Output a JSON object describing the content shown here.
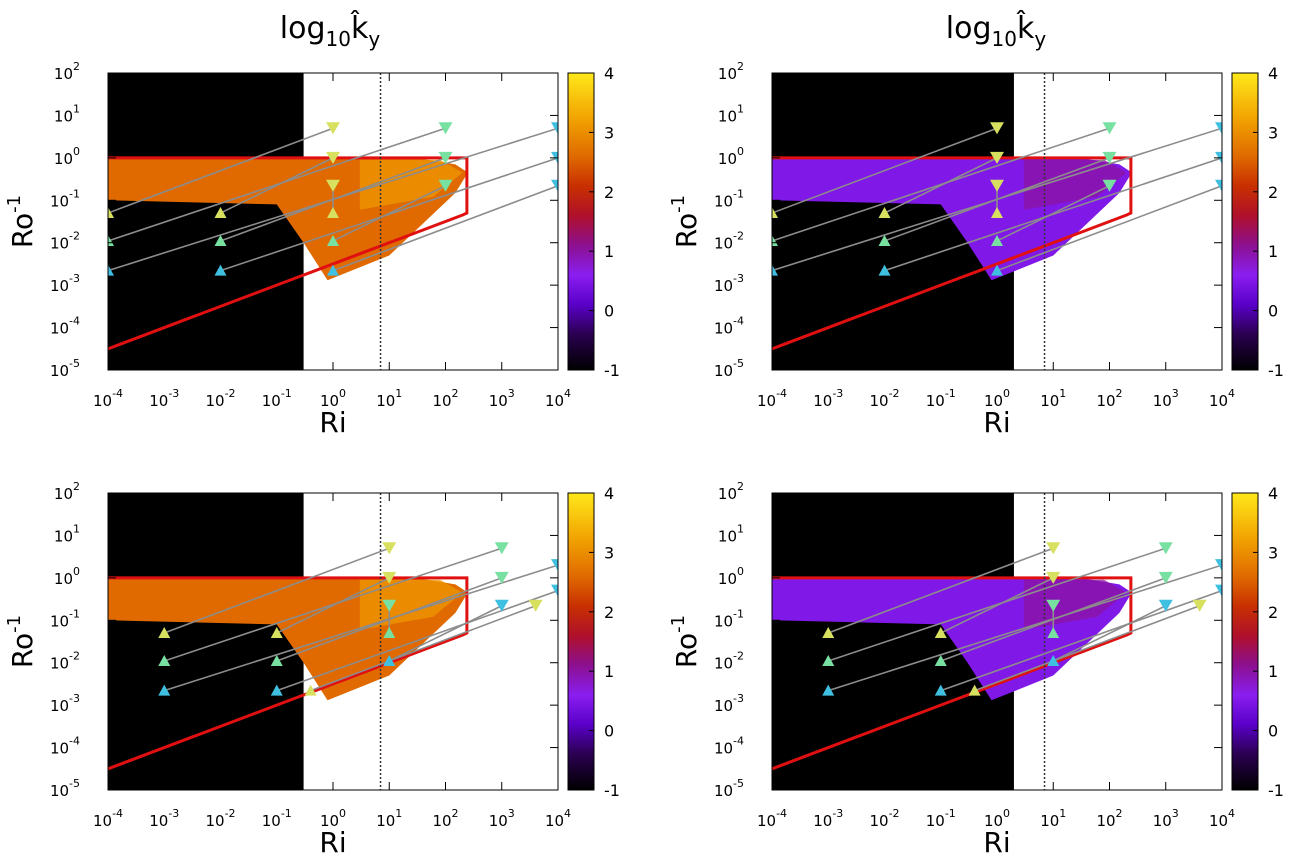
{
  "titles": [
    {
      "base": "log",
      "sub": "10",
      "var": "k̂",
      "varsub": "y"
    },
    {
      "base": "log",
      "sub": "10",
      "var": "k̂",
      "varsub": "y"
    }
  ],
  "chart_data": [
    {
      "type": "heatmap",
      "panel": "top-left",
      "xlabel": "Ri",
      "ylabel": "Ro",
      "ylabel_superscript": "-1",
      "x_scale": "log",
      "y_scale": "log",
      "xlim": [
        0.0001,
        10000
      ],
      "ylim": [
        1e-05,
        100
      ],
      "x_ticks": [
        {
          "base": "10",
          "exp": "-4"
        },
        {
          "base": "10",
          "exp": "-3"
        },
        {
          "base": "10",
          "exp": "-2"
        },
        {
          "base": "10",
          "exp": "-1"
        },
        {
          "base": "10",
          "exp": "0"
        },
        {
          "base": "10",
          "exp": "1"
        },
        {
          "base": "10",
          "exp": "2"
        },
        {
          "base": "10",
          "exp": "3"
        },
        {
          "base": "10",
          "exp": "4"
        }
      ],
      "y_ticks": [
        {
          "base": "10",
          "exp": "-5"
        },
        {
          "base": "10",
          "exp": "-4"
        },
        {
          "base": "10",
          "exp": "-3"
        },
        {
          "base": "10",
          "exp": "-2"
        },
        {
          "base": "10",
          "exp": "-1"
        },
        {
          "base": "10",
          "exp": "0"
        },
        {
          "base": "10",
          "exp": "1"
        },
        {
          "base": "10",
          "exp": "2"
        }
      ],
      "colorbar": {
        "range": [
          -1,
          4
        ],
        "ticks": [
          "4",
          "3",
          "2",
          "1",
          "0",
          "-1"
        ]
      },
      "critical_Ri": 7,
      "fill_value": 2.6,
      "stable_region_black": true,
      "arrows": [
        {
          "x0": 0.0001,
          "y0": 0.05,
          "x1": 1,
          "y1": 5
        },
        {
          "x0": 0.0001,
          "y0": 0.011,
          "x1": 100,
          "y1": 5
        },
        {
          "x0": 0.0001,
          "y0": 0.0022,
          "x1": 10000,
          "y1": 5
        },
        {
          "x0": 0.01,
          "y0": 0.05,
          "x1": 1,
          "y1": 1
        },
        {
          "x0": 0.01,
          "y0": 0.011,
          "x1": 100,
          "y1": 1
        },
        {
          "x0": 0.01,
          "y0": 0.0022,
          "x1": 10000,
          "y1": 1
        },
        {
          "x0": 1,
          "y0": 0.05,
          "x1": 1,
          "y1": 0.22
        },
        {
          "x0": 1,
          "y0": 0.011,
          "x1": 100,
          "y1": 0.22
        },
        {
          "x0": 1,
          "y0": 0.0022,
          "x1": 10000,
          "y1": 0.22
        }
      ]
    },
    {
      "type": "heatmap",
      "panel": "top-right",
      "xlabel": "Ri",
      "ylabel": "Ro",
      "ylabel_superscript": "-1",
      "x_scale": "log",
      "y_scale": "log",
      "xlim": [
        0.0001,
        10000
      ],
      "ylim": [
        1e-05,
        100
      ],
      "x_ticks": [
        {
          "base": "10",
          "exp": "-4"
        },
        {
          "base": "10",
          "exp": "-3"
        },
        {
          "base": "10",
          "exp": "-2"
        },
        {
          "base": "10",
          "exp": "-1"
        },
        {
          "base": "10",
          "exp": "0"
        },
        {
          "base": "10",
          "exp": "1"
        },
        {
          "base": "10",
          "exp": "2"
        },
        {
          "base": "10",
          "exp": "3"
        },
        {
          "base": "10",
          "exp": "4"
        }
      ],
      "y_ticks": [
        {
          "base": "10",
          "exp": "-5"
        },
        {
          "base": "10",
          "exp": "-4"
        },
        {
          "base": "10",
          "exp": "-3"
        },
        {
          "base": "10",
          "exp": "-2"
        },
        {
          "base": "10",
          "exp": "-1"
        },
        {
          "base": "10",
          "exp": "0"
        },
        {
          "base": "10",
          "exp": "1"
        },
        {
          "base": "10",
          "exp": "2"
        }
      ],
      "colorbar": {
        "range": [
          -1,
          4
        ],
        "ticks": [
          "4",
          "3",
          "2",
          "1",
          "0",
          "-1"
        ]
      },
      "critical_Ri": 7,
      "fill_value": 0.5,
      "stable_region_black": true,
      "arrows": [
        {
          "x0": 0.0001,
          "y0": 0.05,
          "x1": 1,
          "y1": 5
        },
        {
          "x0": 0.0001,
          "y0": 0.011,
          "x1": 100,
          "y1": 5
        },
        {
          "x0": 0.0001,
          "y0": 0.0022,
          "x1": 10000,
          "y1": 5
        },
        {
          "x0": 0.01,
          "y0": 0.05,
          "x1": 1,
          "y1": 1
        },
        {
          "x0": 0.01,
          "y0": 0.011,
          "x1": 100,
          "y1": 1
        },
        {
          "x0": 0.01,
          "y0": 0.0022,
          "x1": 10000,
          "y1": 1
        },
        {
          "x0": 1,
          "y0": 0.05,
          "x1": 1,
          "y1": 0.22
        },
        {
          "x0": 1,
          "y0": 0.011,
          "x1": 100,
          "y1": 0.22
        },
        {
          "x0": 1,
          "y0": 0.0022,
          "x1": 10000,
          "y1": 0.22
        }
      ]
    },
    {
      "type": "heatmap",
      "panel": "bottom-left",
      "xlabel": "Ri",
      "ylabel": "Ro",
      "ylabel_superscript": "-1",
      "x_scale": "log",
      "y_scale": "log",
      "xlim": [
        0.0001,
        10000
      ],
      "ylim": [
        1e-05,
        100
      ],
      "x_ticks": [
        {
          "base": "10",
          "exp": "-4"
        },
        {
          "base": "10",
          "exp": "-3"
        },
        {
          "base": "10",
          "exp": "-2"
        },
        {
          "base": "10",
          "exp": "-1"
        },
        {
          "base": "10",
          "exp": "0"
        },
        {
          "base": "10",
          "exp": "1"
        },
        {
          "base": "10",
          "exp": "2"
        },
        {
          "base": "10",
          "exp": "3"
        },
        {
          "base": "10",
          "exp": "4"
        }
      ],
      "y_ticks": [
        {
          "base": "10",
          "exp": "-5"
        },
        {
          "base": "10",
          "exp": "-4"
        },
        {
          "base": "10",
          "exp": "-3"
        },
        {
          "base": "10",
          "exp": "-2"
        },
        {
          "base": "10",
          "exp": "-1"
        },
        {
          "base": "10",
          "exp": "0"
        },
        {
          "base": "10",
          "exp": "1"
        },
        {
          "base": "10",
          "exp": "2"
        }
      ],
      "colorbar": {
        "range": [
          -1,
          4
        ],
        "ticks": [
          "4",
          "3",
          "2",
          "1",
          "0",
          "-1"
        ]
      },
      "critical_Ri": 7,
      "fill_value": 2.6,
      "stable_region_black": true,
      "arrows": [
        {
          "x0": 0.001,
          "y0": 0.05,
          "x1": 10,
          "y1": 5
        },
        {
          "x0": 0.001,
          "y0": 0.011,
          "x1": 1000,
          "y1": 5
        },
        {
          "x0": 0.001,
          "y0": 0.0022,
          "x1": 10000,
          "y1": 2
        },
        {
          "x0": 0.1,
          "y0": 0.05,
          "x1": 10,
          "y1": 1
        },
        {
          "x0": 0.1,
          "y0": 0.011,
          "x1": 1000,
          "y1": 1
        },
        {
          "x0": 0.1,
          "y0": 0.0022,
          "x1": 10000,
          "y1": 0.5
        },
        {
          "x0": 0.4,
          "y0": 0.0022,
          "x1": 4000,
          "y1": 0.22
        },
        {
          "x0": 10,
          "y0": 0.05,
          "x1": 10,
          "y1": 0.22
        },
        {
          "x0": 10,
          "y0": 0.011,
          "x1": 1000,
          "y1": 0.22
        }
      ]
    },
    {
      "type": "heatmap",
      "panel": "bottom-right",
      "xlabel": "Ri",
      "ylabel": "Ro",
      "ylabel_superscript": "-1",
      "x_scale": "log",
      "y_scale": "log",
      "xlim": [
        0.0001,
        10000
      ],
      "ylim": [
        1e-05,
        100
      ],
      "x_ticks": [
        {
          "base": "10",
          "exp": "-4"
        },
        {
          "base": "10",
          "exp": "-3"
        },
        {
          "base": "10",
          "exp": "-2"
        },
        {
          "base": "10",
          "exp": "-1"
        },
        {
          "base": "10",
          "exp": "0"
        },
        {
          "base": "10",
          "exp": "1"
        },
        {
          "base": "10",
          "exp": "2"
        },
        {
          "base": "10",
          "exp": "3"
        },
        {
          "base": "10",
          "exp": "4"
        }
      ],
      "y_ticks": [
        {
          "base": "10",
          "exp": "-5"
        },
        {
          "base": "10",
          "exp": "-4"
        },
        {
          "base": "10",
          "exp": "-3"
        },
        {
          "base": "10",
          "exp": "-2"
        },
        {
          "base": "10",
          "exp": "-1"
        },
        {
          "base": "10",
          "exp": "0"
        },
        {
          "base": "10",
          "exp": "1"
        },
        {
          "base": "10",
          "exp": "2"
        }
      ],
      "colorbar": {
        "range": [
          -1,
          4
        ],
        "ticks": [
          "4",
          "3",
          "2",
          "1",
          "0",
          "-1"
        ]
      },
      "critical_Ri": 7,
      "fill_value": 0.5,
      "stable_region_black": true,
      "arrows": [
        {
          "x0": 0.001,
          "y0": 0.05,
          "x1": 10,
          "y1": 5
        },
        {
          "x0": 0.001,
          "y0": 0.011,
          "x1": 1000,
          "y1": 5
        },
        {
          "x0": 0.001,
          "y0": 0.0022,
          "x1": 10000,
          "y1": 2
        },
        {
          "x0": 0.1,
          "y0": 0.05,
          "x1": 10,
          "y1": 1
        },
        {
          "x0": 0.1,
          "y0": 0.011,
          "x1": 1000,
          "y1": 1
        },
        {
          "x0": 0.1,
          "y0": 0.0022,
          "x1": 10000,
          "y1": 0.5
        },
        {
          "x0": 0.4,
          "y0": 0.0022,
          "x1": 4000,
          "y1": 0.22
        },
        {
          "x0": 10,
          "y0": 0.05,
          "x1": 10,
          "y1": 0.22
        },
        {
          "x0": 10,
          "y0": 0.011,
          "x1": 1000,
          "y1": 0.22
        }
      ]
    }
  ]
}
